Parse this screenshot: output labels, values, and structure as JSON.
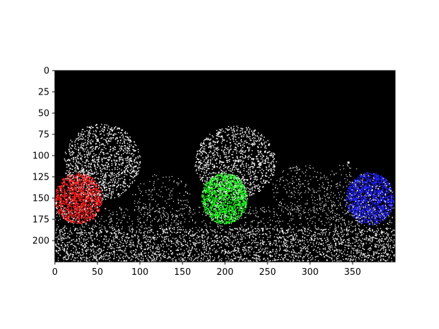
{
  "figure": {
    "background": "#ffffff",
    "image_background": "#000000",
    "noise_color": "#ffffff"
  },
  "axes": {
    "x": {
      "ticks": [
        "0",
        "50",
        "100",
        "150",
        "200",
        "250",
        "300",
        "350"
      ],
      "range": [
        0,
        400
      ]
    },
    "y": {
      "ticks": [
        "0",
        "25",
        "50",
        "75",
        "100",
        "125",
        "150",
        "175",
        "200"
      ],
      "range": [
        0,
        225
      ]
    }
  },
  "blobs": [
    {
      "color": "#ff2020",
      "label": "red-blob"
    },
    {
      "color": "#20ff20",
      "label": "green-blob"
    },
    {
      "color": "#2020ff",
      "label": "blue-blob"
    }
  ],
  "icons": [
    "axes-frame",
    "noise-image"
  ]
}
